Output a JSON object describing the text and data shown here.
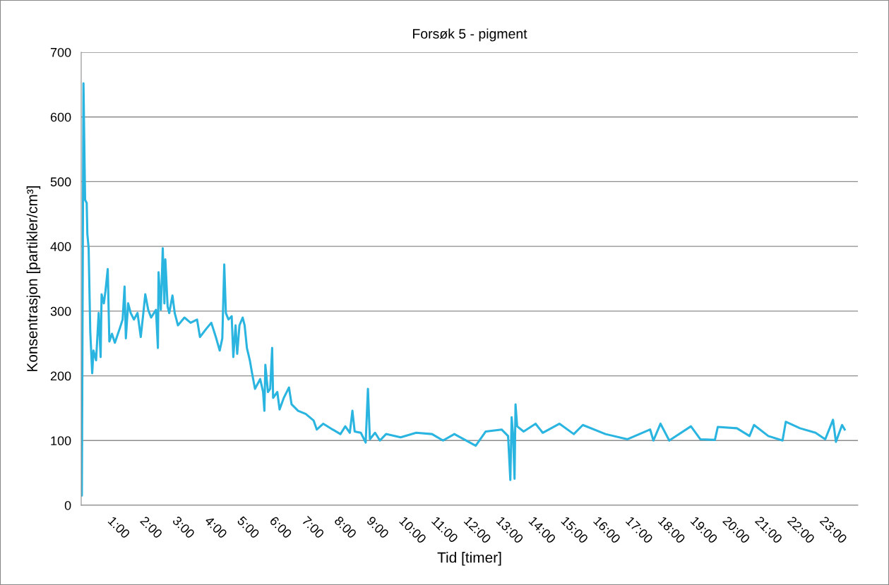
{
  "chart_data": {
    "type": "line",
    "title": "Forsøk 5 - pigment",
    "xlabel": "Tid [timer]",
    "ylabel": "Konsentrasjon [partikler/cm³]",
    "xlim": [
      0,
      24
    ],
    "xticks": [
      {
        "value": 1,
        "label": "1:00"
      },
      {
        "value": 2,
        "label": "2:00"
      },
      {
        "value": 3,
        "label": "3:00"
      },
      {
        "value": 4,
        "label": "4:00"
      },
      {
        "value": 5,
        "label": "5:00"
      },
      {
        "value": 6,
        "label": "6:00"
      },
      {
        "value": 7,
        "label": "7:00"
      },
      {
        "value": 8,
        "label": "8:00"
      },
      {
        "value": 9,
        "label": "9:00"
      },
      {
        "value": 10,
        "label": "10:00"
      },
      {
        "value": 11,
        "label": "11:00"
      },
      {
        "value": 12,
        "label": "12:00"
      },
      {
        "value": 13,
        "label": "13:00"
      },
      {
        "value": 14,
        "label": "14:00"
      },
      {
        "value": 15,
        "label": "15:00"
      },
      {
        "value": 16,
        "label": "16:00"
      },
      {
        "value": 17,
        "label": "17:00"
      },
      {
        "value": 18,
        "label": "18:00"
      },
      {
        "value": 19,
        "label": "19:00"
      },
      {
        "value": 20,
        "label": "20:00"
      },
      {
        "value": 21,
        "label": "21:00"
      },
      {
        "value": 22,
        "label": "22:00"
      },
      {
        "value": 23,
        "label": "23:00"
      }
    ],
    "ylim": [
      0,
      700
    ],
    "yticks": [
      0,
      100,
      200,
      300,
      400,
      500,
      600,
      700
    ],
    "grid": "y",
    "marker": "none",
    "line_style": "solid",
    "series": [
      {
        "color": "#2ab4e0",
        "x": [
          0.0,
          0.01,
          0.02,
          0.07,
          0.12,
          0.17,
          0.19,
          0.23,
          0.28,
          0.34,
          0.38,
          0.46,
          0.54,
          0.6,
          0.63,
          0.7,
          0.75,
          0.82,
          0.87,
          0.95,
          1.04,
          1.19,
          1.28,
          1.34,
          1.38,
          1.45,
          1.53,
          1.63,
          1.74,
          1.84,
          1.92,
          1.98,
          2.07,
          2.16,
          2.31,
          2.37,
          2.39,
          2.46,
          2.52,
          2.57,
          2.6,
          2.67,
          2.72,
          2.82,
          2.89,
          2.99,
          3.19,
          3.38,
          3.58,
          3.67,
          3.87,
          4.02,
          4.16,
          4.28,
          4.36,
          4.42,
          4.47,
          4.55,
          4.65,
          4.7,
          4.77,
          4.82,
          4.89,
          4.99,
          5.05,
          5.12,
          5.21,
          5.28,
          5.37,
          5.53,
          5.62,
          5.66,
          5.69,
          5.77,
          5.84,
          5.9,
          5.93,
          6.06,
          6.13,
          6.26,
          6.42,
          6.5,
          6.7,
          6.94,
          7.18,
          7.28,
          7.48,
          7.77,
          8.01,
          8.16,
          8.3,
          8.38,
          8.45,
          8.64,
          8.79,
          8.86,
          8.92,
          9.08,
          9.23,
          9.42,
          9.87,
          10.35,
          10.84,
          11.18,
          11.53,
          12.19,
          12.5,
          12.99,
          13.19,
          13.26,
          13.3,
          13.34,
          13.39,
          13.42,
          13.47,
          13.67,
          14.04,
          14.26,
          14.78,
          15.22,
          15.5,
          16.2,
          16.88,
          17.58,
          17.68,
          17.9,
          18.17,
          18.84,
          19.13,
          19.58,
          19.67,
          20.26,
          20.65,
          20.79,
          21.23,
          21.67,
          21.77,
          22.21,
          22.69,
          22.99,
          23.23,
          23.32,
          23.51,
          23.59
        ],
        "values": [
          15,
          131,
          15,
          652,
          472,
          467,
          419,
          397,
          268,
          204,
          239,
          224,
          297,
          229,
          326,
          312,
          331,
          365,
          253,
          265,
          251,
          273,
          287,
          338,
          258,
          312,
          297,
          287,
          297,
          260,
          297,
          326,
          302,
          290,
          302,
          243,
          360,
          302,
          397,
          312,
          380,
          307,
          297,
          324,
          297,
          278,
          290,
          282,
          287,
          260,
          273,
          282,
          260,
          239,
          258,
          372,
          297,
          287,
          292,
          229,
          278,
          234,
          278,
          290,
          278,
          243,
          224,
          204,
          180,
          195,
          175,
          146,
          217,
          175,
          180,
          243,
          166,
          175,
          148,
          166,
          182,
          156,
          146,
          141,
          131,
          117,
          126,
          117,
          110,
          122,
          112,
          146,
          114,
          112,
          97,
          180,
          102,
          112,
          100,
          110,
          105,
          112,
          110,
          100,
          110,
          92,
          114,
          117,
          107,
          39,
          136,
          112,
          41,
          156,
          122,
          114,
          126,
          112,
          126,
          110,
          124,
          110,
          102,
          117,
          100,
          126,
          100,
          122,
          102,
          101,
          121,
          119,
          107,
          124,
          107,
          100,
          129,
          119,
          112,
          102,
          132,
          98,
          124,
          117
        ]
      }
    ]
  }
}
